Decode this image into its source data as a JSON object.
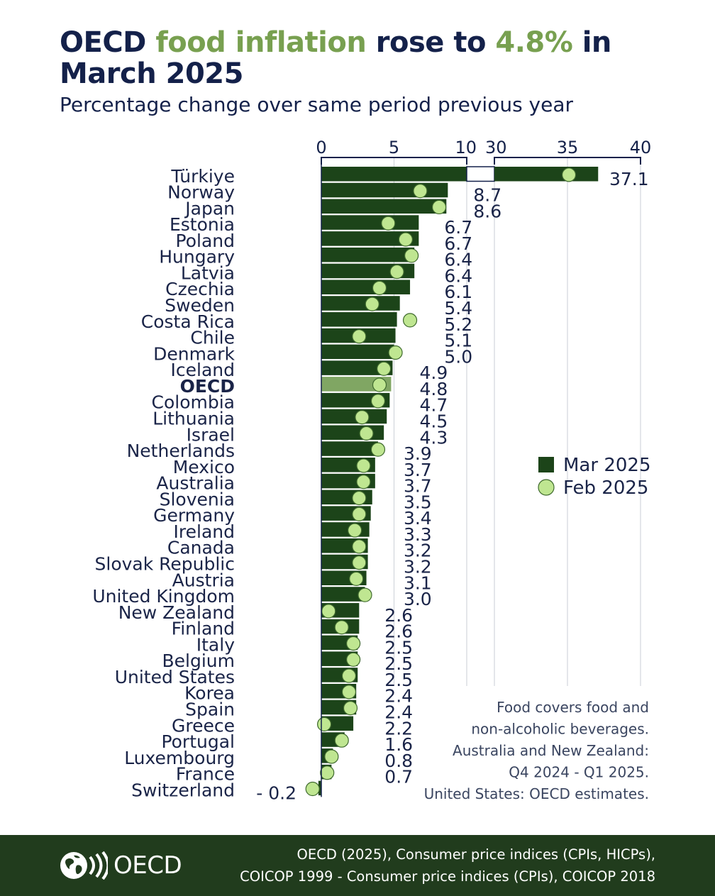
{
  "title_parts": [
    {
      "text": "OECD ",
      "highlight": false
    },
    {
      "text": "food inflation",
      "highlight": true
    },
    {
      "text": " rose to ",
      "highlight": false
    },
    {
      "text": "4.8%",
      "highlight": true
    },
    {
      "text": " in March 2025",
      "highlight": false
    }
  ],
  "subtitle": "Percentage change over same period previous year",
  "colors": {
    "bar": "#1c4419",
    "bar_highlight": "#80a663",
    "dot": "#bfe691",
    "dot_stroke": "#3f6a2e",
    "text": "#1a2448",
    "axis": "#14214a"
  },
  "chart_data": {
    "type": "bar",
    "orientation": "horizontal",
    "axis_segments": [
      {
        "range": [
          0,
          10
        ],
        "ticks": [
          0,
          5,
          10
        ]
      },
      {
        "range": [
          30,
          40
        ],
        "ticks": [
          30,
          35,
          40
        ]
      }
    ],
    "categories": [
      "Türkiye",
      "Norway",
      "Japan",
      "Estonia",
      "Poland",
      "Hungary",
      "Latvia",
      "Czechia",
      "Sweden",
      "Costa Rica",
      "Chile",
      "Denmark",
      "Iceland",
      "OECD",
      "Colombia",
      "Lithuania",
      "Israel",
      "Netherlands",
      "Mexico",
      "Australia",
      "Slovenia",
      "Germany",
      "Ireland",
      "Canada",
      "Slovak Republic",
      "Austria",
      "United Kingdom",
      "New Zealand",
      "Finland",
      "Italy",
      "Belgium",
      "United States",
      "Korea",
      "Spain",
      "Greece",
      "Portugal",
      "Luxembourg",
      "France",
      "Switzerland"
    ],
    "highlight_category": "OECD",
    "series": [
      {
        "name": "Mar 2025",
        "marker": "bar",
        "values": [
          37.1,
          8.7,
          8.6,
          6.7,
          6.7,
          6.4,
          6.4,
          6.1,
          5.4,
          5.2,
          5.1,
          5.0,
          4.9,
          4.8,
          4.7,
          4.5,
          4.3,
          3.9,
          3.7,
          3.7,
          3.5,
          3.4,
          3.3,
          3.2,
          3.2,
          3.1,
          3.0,
          2.6,
          2.6,
          2.5,
          2.5,
          2.5,
          2.4,
          2.4,
          2.2,
          1.6,
          0.8,
          0.7,
          -0.2
        ],
        "labels": [
          "37.1",
          "8.7",
          "8.6",
          "6.7",
          "6.7",
          "6.4",
          "6.4",
          "6.1",
          "5.4",
          "5.2",
          "5.1",
          "5.0",
          "4.9",
          "4.8",
          "4.7",
          "4.5",
          "4.3",
          "3.9",
          "3.7",
          "3.7",
          "3.5",
          "3.4",
          "3.3",
          "3.2",
          "3.2",
          "3.1",
          "3.0",
          "2.6",
          "2.6",
          "2.5",
          "2.5",
          "2.5",
          "2.4",
          "2.4",
          "2.2",
          "1.6",
          "0.8",
          "0.7",
          "- 0.2"
        ]
      },
      {
        "name": "Feb 2025",
        "marker": "dot",
        "values": [
          35.1,
          6.8,
          8.1,
          4.6,
          5.8,
          6.2,
          5.2,
          4.0,
          3.5,
          6.1,
          2.6,
          5.1,
          4.3,
          4.0,
          3.9,
          2.8,
          3.1,
          3.9,
          2.9,
          2.9,
          2.6,
          2.6,
          2.3,
          2.6,
          2.6,
          2.4,
          3.0,
          0.5,
          1.4,
          2.2,
          2.2,
          1.9,
          1.9,
          2.0,
          0.2,
          1.4,
          0.7,
          0.4,
          -0.6
        ]
      }
    ],
    "legend_position": "right",
    "notes": [
      "Food covers food and",
      "non-alcoholic beverages.",
      "Australia and New Zealand:",
      "Q4 2024 - Q1 2025.",
      "United States: OECD estimates."
    ]
  },
  "footer": {
    "logo_text": "OECD",
    "source_lines": [
      "OECD (2025), Consumer price indices (CPIs, HICPs),",
      "COICOP 1999 - Consumer price indices (CPIs), COICOP 2018"
    ]
  }
}
